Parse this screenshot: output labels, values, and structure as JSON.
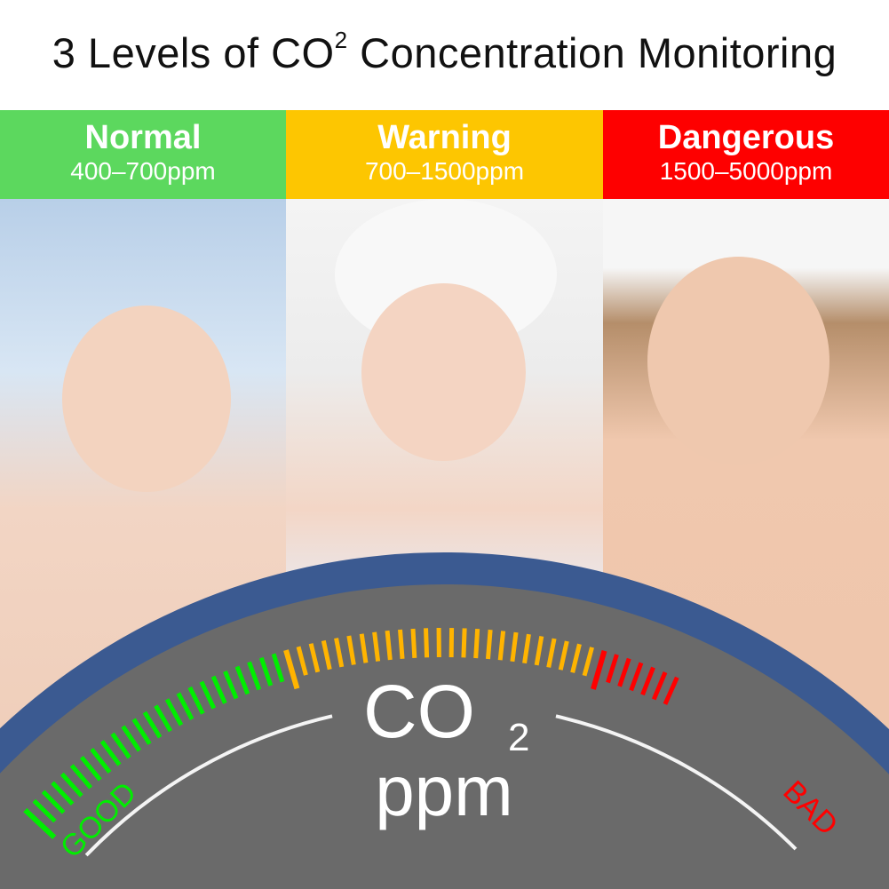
{
  "title": {
    "text": "3 Levels of CO",
    "superscript": "2",
    "suffix": " Concentration Monitoring"
  },
  "levels": [
    {
      "label": "Normal",
      "range": "400–700ppm",
      "color": "#5cd85e"
    },
    {
      "label": "Warning",
      "range": "700–1500ppm",
      "color": "#fdc601"
    },
    {
      "label": "Dangerous",
      "range": "1500–5000ppm",
      "color": "#fe0000"
    }
  ],
  "gauge": {
    "co2_label": "CO",
    "co2_subscript": "2",
    "unit": "ppm",
    "good_label": "GOOD",
    "bad_label": "BAD",
    "ring_color": "#3b5a91",
    "face_color": "#6a6a6a",
    "good_color": "#00ee00",
    "warn_color": "#ffb400",
    "bad_color": "#ff0000"
  }
}
